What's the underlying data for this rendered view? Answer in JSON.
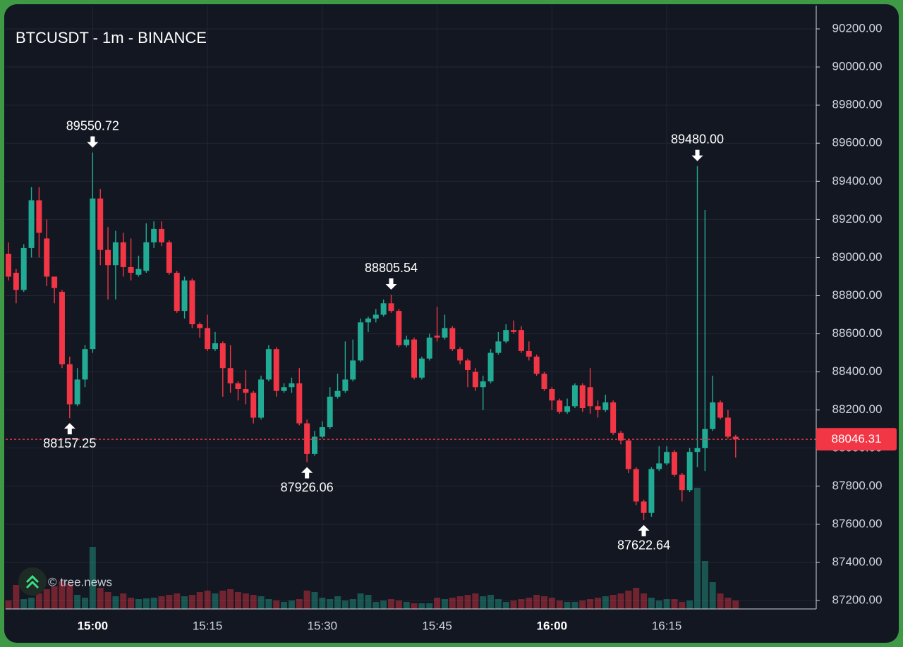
{
  "chart_data": {
    "type": "candlestick",
    "title": "BTCUSDT - 1m - BINANCE",
    "watermark": "© tree.news",
    "x": [
      "14:49",
      "14:50",
      "14:51",
      "14:52",
      "14:53",
      "14:54",
      "14:55",
      "14:56",
      "14:57",
      "14:58",
      "14:59",
      "15:00",
      "15:01",
      "15:02",
      "15:03",
      "15:04",
      "15:05",
      "15:06",
      "15:07",
      "15:08",
      "15:09",
      "15:10",
      "15:11",
      "15:12",
      "15:13",
      "15:14",
      "15:15",
      "15:16",
      "15:17",
      "15:18",
      "15:19",
      "15:20",
      "15:21",
      "15:22",
      "15:23",
      "15:24",
      "15:25",
      "15:26",
      "15:27",
      "15:28",
      "15:29",
      "15:30",
      "15:31",
      "15:32",
      "15:33",
      "15:34",
      "15:35",
      "15:36",
      "15:37",
      "15:38",
      "15:39",
      "15:40",
      "15:41",
      "15:42",
      "15:43",
      "15:44",
      "15:45",
      "15:46",
      "15:47",
      "15:48",
      "15:49",
      "15:50",
      "15:51",
      "15:52",
      "15:53",
      "15:54",
      "15:55",
      "15:56",
      "15:57",
      "15:58",
      "15:59",
      "16:00",
      "16:01",
      "16:02",
      "16:03",
      "16:04",
      "16:05",
      "16:06",
      "16:07",
      "16:08",
      "16:09",
      "16:10",
      "16:11",
      "16:12",
      "16:13",
      "16:14",
      "16:15",
      "16:16",
      "16:17",
      "16:18",
      "16:19",
      "16:20",
      "16:21",
      "16:22",
      "16:23",
      "16:24"
    ],
    "open": [
      89020,
      88920,
      88830,
      89050,
      89300,
      89100,
      88900,
      88820,
      88440,
      88230,
      88360,
      88520,
      89310,
      89040,
      88960,
      89080,
      88950,
      88910,
      88930,
      89080,
      89150,
      89080,
      88920,
      88720,
      88880,
      88650,
      88630,
      88520,
      88550,
      88420,
      88340,
      88310,
      88290,
      88160,
      88360,
      88520,
      88300,
      88320,
      88340,
      88130,
      87970,
      88060,
      88110,
      88270,
      88300,
      88360,
      88460,
      88660,
      88680,
      88700,
      88760,
      88720,
      88540,
      88570,
      88370,
      88470,
      88590,
      88580,
      88630,
      88520,
      88460,
      88400,
      88320,
      88350,
      88500,
      88560,
      88620,
      88620,
      88510,
      88480,
      88390,
      88310,
      88250,
      88190,
      88220,
      88330,
      88320,
      88220,
      88200,
      88240,
      88080,
      88040,
      87890,
      87720,
      87660,
      87890,
      87920,
      87980,
      87860,
      87780,
      87980,
      88000,
      88100,
      88240,
      88160,
      88060
    ],
    "high": [
      89080,
      88940,
      89070,
      89370,
      89370,
      89200,
      88900,
      88830,
      88480,
      88420,
      88540,
      89550.72,
      89360,
      89160,
      89140,
      89130,
      89100,
      89010,
      89180,
      89190,
      89190,
      89090,
      88930,
      88900,
      88890,
      88660,
      88700,
      88610,
      88560,
      88540,
      88350,
      88410,
      88300,
      88380,
      88540,
      88530,
      88340,
      88370,
      88420,
      88150,
      88090,
      88140,
      88320,
      88390,
      88560,
      88570,
      88680,
      88690,
      88730,
      88780,
      88805.54,
      88730,
      88590,
      88580,
      88480,
      88600,
      88740,
      88700,
      88640,
      88530,
      88470,
      88420,
      88380,
      88520,
      88610,
      88650,
      88670,
      88640,
      88560,
      88490,
      88400,
      88320,
      88260,
      88260,
      88340,
      88340,
      88420,
      88250,
      88280,
      88250,
      88090,
      88050,
      87900,
      87730,
      87900,
      88010,
      88010,
      87990,
      87870,
      88000,
      89480,
      89250,
      88380,
      88250,
      88200,
      88070
    ],
    "low": [
      88880,
      88760,
      88820,
      89000,
      89000,
      88850,
      88760,
      88420,
      88157.25,
      88220,
      88320,
      88500,
      88960,
      88780,
      88780,
      88900,
      88880,
      88900,
      88920,
      89050,
      89060,
      88910,
      88710,
      88680,
      88630,
      88580,
      88510,
      88510,
      88270,
      88290,
      88250,
      88230,
      88130,
      88150,
      88350,
      88270,
      88290,
      88290,
      88120,
      87926.06,
      87960,
      88050,
      88100,
      88260,
      88290,
      88350,
      88450,
      88610,
      88660,
      88690,
      88710,
      88530,
      88530,
      88360,
      88360,
      88460,
      88560,
      88570,
      88510,
      88440,
      88320,
      88300,
      88200,
      88340,
      88490,
      88550,
      88600,
      88500,
      88460,
      88380,
      88300,
      88200,
      88180,
      88180,
      88210,
      88190,
      88180,
      88160,
      88190,
      88070,
      88020,
      87870,
      87700,
      87622.64,
      87640,
      87880,
      87910,
      87850,
      87720,
      87770,
      87900,
      87880,
      88090,
      88150,
      88050,
      87950
    ],
    "close": [
      88900,
      88830,
      89050,
      89300,
      89130,
      88900,
      88840,
      88440,
      88230,
      88360,
      88520,
      89310,
      89040,
      88960,
      89080,
      88950,
      88920,
      88940,
      89080,
      89150,
      89080,
      88920,
      88720,
      88880,
      88650,
      88630,
      88520,
      88550,
      88420,
      88340,
      88310,
      88290,
      88160,
      88360,
      88520,
      88300,
      88320,
      88340,
      88130,
      87970,
      88060,
      88110,
      88270,
      88300,
      88360,
      88460,
      88660,
      88680,
      88700,
      88760,
      88720,
      88540,
      88570,
      88370,
      88470,
      88580,
      88580,
      88630,
      88520,
      88460,
      88410,
      88320,
      88350,
      88500,
      88560,
      88620,
      88610,
      88510,
      88480,
      88390,
      88310,
      88250,
      88190,
      88220,
      88330,
      88210,
      88220,
      88200,
      88240,
      88080,
      88040,
      87890,
      87720,
      87660,
      87890,
      87920,
      87980,
      87860,
      87780,
      87980,
      88000,
      88100,
      88240,
      88160,
      88060,
      88046.31
    ],
    "volume": [
      12,
      34,
      14,
      16,
      22,
      28,
      32,
      40,
      36,
      20,
      16,
      88,
      30,
      24,
      18,
      22,
      16,
      14,
      15,
      16,
      18,
      20,
      22,
      18,
      20,
      24,
      26,
      22,
      26,
      28,
      24,
      22,
      20,
      18,
      14,
      12,
      10,
      12,
      14,
      26,
      24,
      16,
      14,
      18,
      12,
      14,
      22,
      20,
      10,
      12,
      14,
      12,
      10,
      8,
      8,
      8,
      16,
      14,
      16,
      18,
      20,
      22,
      18,
      20,
      14,
      10,
      12,
      14,
      16,
      20,
      18,
      16,
      12,
      10,
      10,
      12,
      14,
      16,
      18,
      20,
      22,
      26,
      30,
      22,
      16,
      12,
      14,
      14,
      10,
      12,
      172,
      68,
      38,
      22,
      16,
      12
    ],
    "up_color": "#22ab94",
    "down_color": "#f23645",
    "ylim": [
      87156,
      90322
    ],
    "yticks": [
      {
        "value": 87200,
        "label": "87200.00"
      },
      {
        "value": 87400,
        "label": "87400.00"
      },
      {
        "value": 87600,
        "label": "87600.00"
      },
      {
        "value": 87800,
        "label": "87800.00"
      },
      {
        "value": 88000,
        "label": "88000.00"
      },
      {
        "value": 88200,
        "label": "88200.00"
      },
      {
        "value": 88400,
        "label": "88400.00"
      },
      {
        "value": 88600,
        "label": "88600.00"
      },
      {
        "value": 88800,
        "label": "88800.00"
      },
      {
        "value": 89000,
        "label": "89000.00"
      },
      {
        "value": 89200,
        "label": "89200.00"
      },
      {
        "value": 89400,
        "label": "89400.00"
      },
      {
        "value": 89600,
        "label": "89600.00"
      },
      {
        "value": 89800,
        "label": "89800.00"
      },
      {
        "value": 90000,
        "label": "90000.00"
      },
      {
        "value": 90200,
        "label": "90200.00"
      }
    ],
    "xticks": [
      "15:00",
      "15:15",
      "15:30",
      "15:45",
      "16:00",
      "16:15"
    ],
    "grid": true,
    "annotations": [
      {
        "x": "14:57",
        "value": 88157.25
      },
      {
        "x": "15:00",
        "value": 89550.72
      },
      {
        "x": "15:28",
        "value": 87926.06
      },
      {
        "x": "15:39",
        "value": 88805.54
      },
      {
        "x": "16:12",
        "value": 87622.64
      },
      {
        "x": "16:19",
        "value": 89480,
        "label": "89480.00"
      }
    ],
    "last_price": 88046.31
  }
}
